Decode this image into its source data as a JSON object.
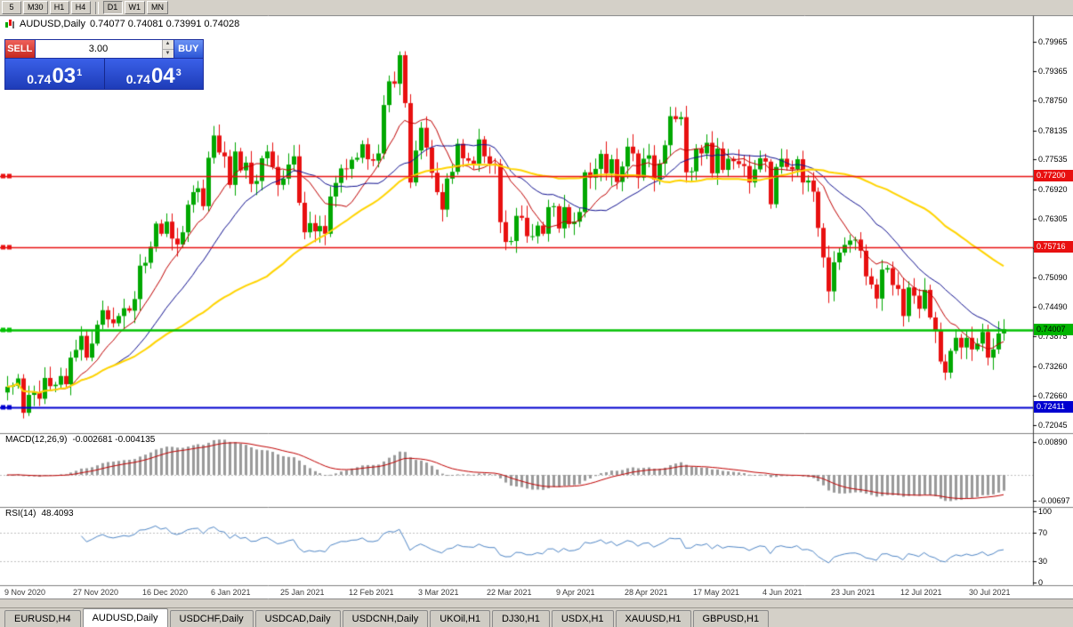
{
  "toolbar": {
    "timeframes": [
      {
        "label": "5",
        "active": false,
        "sep_after": false
      },
      {
        "label": "M30",
        "active": false,
        "sep_after": false
      },
      {
        "label": "H1",
        "active": false,
        "sep_after": false
      },
      {
        "label": "H4",
        "active": false,
        "sep_after": true
      },
      {
        "label": "D1",
        "active": true,
        "sep_after": false
      },
      {
        "label": "W1",
        "active": false,
        "sep_after": false
      },
      {
        "label": "MN",
        "active": false,
        "sep_after": false
      }
    ]
  },
  "chart": {
    "symbol_title": "AUDUSD,Daily",
    "ohlc": "0.74077 0.74081 0.73991 0.74028"
  },
  "one_click": {
    "sell_label": "SELL",
    "buy_label": "BUY",
    "volume": "3.00",
    "sell_price": {
      "base": "0.74",
      "big": "03",
      "sup": "1"
    },
    "buy_price": {
      "base": "0.74",
      "big": "04",
      "sup": "3"
    }
  },
  "price_axis": {
    "ticks": [
      "0.79965",
      "0.79365",
      "0.78750",
      "0.78135",
      "0.77535",
      "0.76920",
      "0.76305",
      "0.75705",
      "0.75090",
      "0.74490",
      "0.73875",
      "0.73260",
      "0.72660",
      "0.72045"
    ],
    "tags": [
      {
        "text": "0.77200",
        "color": "#e81010",
        "text_color": "#ffffff"
      },
      {
        "text": "0.75716",
        "color": "#e81010",
        "text_color": "#ffffff"
      },
      {
        "text": "0.74007",
        "color": "#00b400",
        "text_color": "#000000"
      },
      {
        "text": "0.72411",
        "color": "#0000d0",
        "text_color": "#ffffff"
      }
    ]
  },
  "macd_panel": {
    "label": "MACD(12,26,9)",
    "values": "-0.002681 -0.004135",
    "axis": [
      "0.00890",
      "-0.00697"
    ]
  },
  "rsi_panel": {
    "label": "RSI(14)",
    "value": "48.4093",
    "axis": [
      "100",
      "70",
      "30",
      "0"
    ],
    "levels": [
      70,
      30
    ]
  },
  "date_axis": [
    "9 Nov 2020",
    "27 Nov 2020",
    "16 Dec 2020",
    "6 Jan 2021",
    "25 Jan 2021",
    "12 Feb 2021",
    "3 Mar 2021",
    "22 Mar 2021",
    "9 Apr 2021",
    "28 Apr 2021",
    "17 May 2021",
    "4 Jun 2021",
    "23 Jun 2021",
    "12 Jul 2021",
    "30 Jul 2021"
  ],
  "tabs": [
    {
      "label": "EURUSD,H4",
      "active": false
    },
    {
      "label": "AUDUSD,Daily",
      "active": true
    },
    {
      "label": "USDCHF,Daily",
      "active": false
    },
    {
      "label": "USDCAD,Daily",
      "active": false
    },
    {
      "label": "USDCNH,Daily",
      "active": false
    },
    {
      "label": "UKOil,H1",
      "active": false
    },
    {
      "label": "DJ30,H1",
      "active": false
    },
    {
      "label": "USDX,H1",
      "active": false
    },
    {
      "label": "XAUUSD,H1",
      "active": false
    },
    {
      "label": "GBPUSD,H1",
      "active": false
    }
  ],
  "chart_data": {
    "type": "candlestick",
    "title": "AUDUSD,Daily",
    "symbol": "AUDUSD",
    "timeframe": "Daily",
    "price_range": {
      "top": 0.805,
      "bottom": 0.7188
    },
    "up_color": "#00a800",
    "down_color": "#e81010",
    "closes": [
      0.7284,
      0.7286,
      0.7301,
      0.723,
      0.7267,
      0.7272,
      0.7259,
      0.7302,
      0.7285,
      0.7288,
      0.7306,
      0.7289,
      0.7344,
      0.736,
      0.7389,
      0.7344,
      0.7373,
      0.7412,
      0.7442,
      0.7423,
      0.7415,
      0.743,
      0.7446,
      0.7441,
      0.7465,
      0.7534,
      0.754,
      0.7573,
      0.7621,
      0.76,
      0.7625,
      0.759,
      0.7578,
      0.7603,
      0.766,
      0.7686,
      0.7694,
      0.7657,
      0.7757,
      0.7803,
      0.7768,
      0.776,
      0.7701,
      0.777,
      0.7731,
      0.7747,
      0.7703,
      0.7709,
      0.7756,
      0.777,
      0.7738,
      0.7701,
      0.7714,
      0.7743,
      0.776,
      0.7664,
      0.7603,
      0.7622,
      0.7605,
      0.7616,
      0.76,
      0.7677,
      0.7705,
      0.7735,
      0.7734,
      0.7753,
      0.7757,
      0.7785,
      0.7754,
      0.7751,
      0.7766,
      0.7866,
      0.7915,
      0.791,
      0.7969,
      0.787,
      0.7706,
      0.7772,
      0.7819,
      0.7778,
      0.7726,
      0.7686,
      0.765,
      0.7714,
      0.7728,
      0.7786,
      0.7756,
      0.7751,
      0.7745,
      0.7795,
      0.776,
      0.7745,
      0.7744,
      0.7624,
      0.7583,
      0.7585,
      0.7637,
      0.7633,
      0.7595,
      0.7595,
      0.7617,
      0.76,
      0.7655,
      0.7657,
      0.7611,
      0.7655,
      0.762,
      0.7625,
      0.7645,
      0.7727,
      0.7716,
      0.7734,
      0.7765,
      0.7725,
      0.7754,
      0.7707,
      0.7739,
      0.778,
      0.7766,
      0.7716,
      0.7755,
      0.7762,
      0.7712,
      0.7745,
      0.7783,
      0.7843,
      0.7837,
      0.7841,
      0.7727,
      0.7729,
      0.7776,
      0.7766,
      0.7788,
      0.7725,
      0.7776,
      0.7732,
      0.7755,
      0.775,
      0.7744,
      0.774,
      0.7706,
      0.7733,
      0.7756,
      0.7749,
      0.7661,
      0.7738,
      0.7755,
      0.7738,
      0.7733,
      0.7754,
      0.7706,
      0.771,
      0.7687,
      0.7612,
      0.7551,
      0.7481,
      0.7541,
      0.7561,
      0.7577,
      0.7586,
      0.7588,
      0.7565,
      0.7512,
      0.7495,
      0.7466,
      0.7526,
      0.7529,
      0.7494,
      0.7486,
      0.743,
      0.7489,
      0.7472,
      0.7445,
      0.7484,
      0.7427,
      0.7399,
      0.7336,
      0.7313,
      0.7358,
      0.7385,
      0.7365,
      0.7385,
      0.7361,
      0.7373,
      0.7397,
      0.7344,
      0.7361,
      0.7394,
      0.7403
    ],
    "h_lines": [
      {
        "price": 0.772,
        "color": "#e81010",
        "width": 1.5
      },
      {
        "price": 0.75716,
        "color": "#e81010",
        "width": 1.5
      },
      {
        "price": 0.74007,
        "color": "#00c000",
        "width": 2.5
      },
      {
        "price": 0.72411,
        "color": "#0000d0",
        "width": 2
      }
    ],
    "moving_averages": [
      {
        "period": 10,
        "color": "#c00000",
        "width": 1
      },
      {
        "period": 21,
        "color": "#101090",
        "width": 1
      },
      {
        "period": 50,
        "color": "#ffd400",
        "width": 2
      }
    ],
    "indicators": {
      "macd": {
        "fast": 12,
        "slow": 26,
        "signal": 9,
        "hist_color": "#9a9a9a",
        "signal_color": "#c00000"
      },
      "rsi": {
        "period": 14,
        "color": "#4f86c6"
      }
    }
  }
}
